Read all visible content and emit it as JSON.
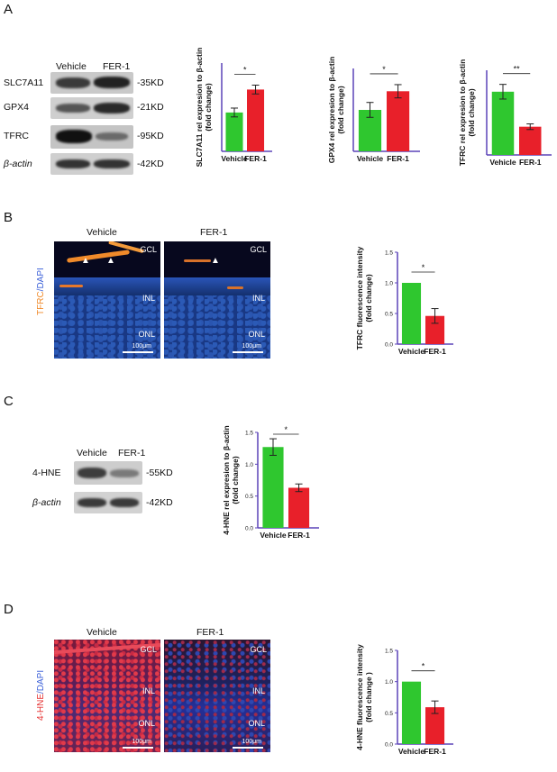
{
  "panels": {
    "A": {
      "label": "A",
      "blot": {
        "groups": [
          "Vehicle",
          "FER-1"
        ],
        "rows": [
          {
            "protein": "SLC7A11",
            "size": "-35KD"
          },
          {
            "protein": "GPX4",
            "size": "-21KD"
          },
          {
            "protein": "TFRC",
            "size": "-95KD"
          },
          {
            "protein": "β-actin",
            "size": "-42KD"
          }
        ]
      }
    },
    "B": {
      "label": "B",
      "images": [
        "Vehicle",
        "FER-1"
      ],
      "stain_label_1": "TFRC",
      "stain_label_2": "/DAPI",
      "layers": {
        "gcl": "GCL",
        "inl": "INL",
        "onl": "ONL"
      },
      "scale": "100μm"
    },
    "C": {
      "label": "C",
      "blot": {
        "groups": [
          "Vehicle",
          "FER-1"
        ],
        "rows": [
          {
            "protein": "4-HNE",
            "size": "-55KD"
          },
          {
            "protein": "β-actin",
            "size": "-42KD"
          }
        ]
      }
    },
    "D": {
      "label": "D",
      "images": [
        "Vehicle",
        "FER-1"
      ],
      "stain_label_1": "4-HNE",
      "stain_label_2": "/DAPI",
      "layers": {
        "gcl": "GCL",
        "inl": "INL",
        "onl": "ONL"
      },
      "scale": "100μm"
    }
  },
  "colors": {
    "vehicle": "#2fc72f",
    "fer1": "#e8202a",
    "axis": "#5b43b8",
    "tfrc": "#f08a2a",
    "hne": "#e53030",
    "dapi": "#3a5fd8"
  },
  "chart_data": [
    {
      "type": "bar",
      "ylabel": "SLC7A11 rel expresion to β-actin (fold change)",
      "categories": [
        "Vehicle",
        "FER-1"
      ],
      "values": [
        0.88,
        1.4
      ],
      "errors": [
        0.1,
        0.1
      ],
      "ylim": [
        0,
        2.0
      ],
      "ticks": [],
      "significance": "*"
    },
    {
      "type": "bar",
      "ylabel": "GPX4 rel expresion to β-actin (fold change)",
      "categories": [
        "Vehicle",
        "FER-1"
      ],
      "values": [
        1.0,
        1.45
      ],
      "errors": [
        0.18,
        0.16
      ],
      "ylim": [
        0,
        2.0
      ],
      "ticks": [],
      "significance": "*"
    },
    {
      "type": "bar",
      "ylabel": "TFRC rel expresion to β-actin (fold change)",
      "categories": [
        "Vehicle",
        "FER-1"
      ],
      "values": [
        1.12,
        0.5
      ],
      "errors": [
        0.13,
        0.05
      ],
      "ylim": [
        0,
        1.5
      ],
      "ticks": [],
      "significance": "**"
    },
    {
      "type": "bar",
      "ylabel": "TFRC fluorescence intensity (fold change)",
      "categories": [
        "Vehicle",
        "FER-1"
      ],
      "values": [
        1.0,
        0.46
      ],
      "errors": [
        0,
        0.12
      ],
      "ylim": [
        0,
        1.5
      ],
      "ticks": [
        "0.0",
        "0.5",
        "1.0",
        "1.5"
      ],
      "significance": "*"
    },
    {
      "type": "bar",
      "ylabel": "4-HNE rel expresion to β-actin (fold change)",
      "categories": [
        "Vehicle",
        "FER-1"
      ],
      "values": [
        1.27,
        0.63
      ],
      "errors": [
        0.13,
        0.06
      ],
      "ylim": [
        0,
        1.5
      ],
      "ticks": [
        "0.0",
        "0.5",
        "1.0",
        "1.5"
      ],
      "significance": "*"
    },
    {
      "type": "bar",
      "ylabel": "4-HNE fluorescence intensity (fold change )",
      "categories": [
        "Vehicle",
        "FER-1"
      ],
      "values": [
        1.0,
        0.59
      ],
      "errors": [
        0,
        0.1
      ],
      "ylim": [
        0,
        1.5
      ],
      "ticks": [
        "0.0",
        "0.5",
        "1.0",
        "1.5"
      ],
      "significance": "*"
    }
  ]
}
